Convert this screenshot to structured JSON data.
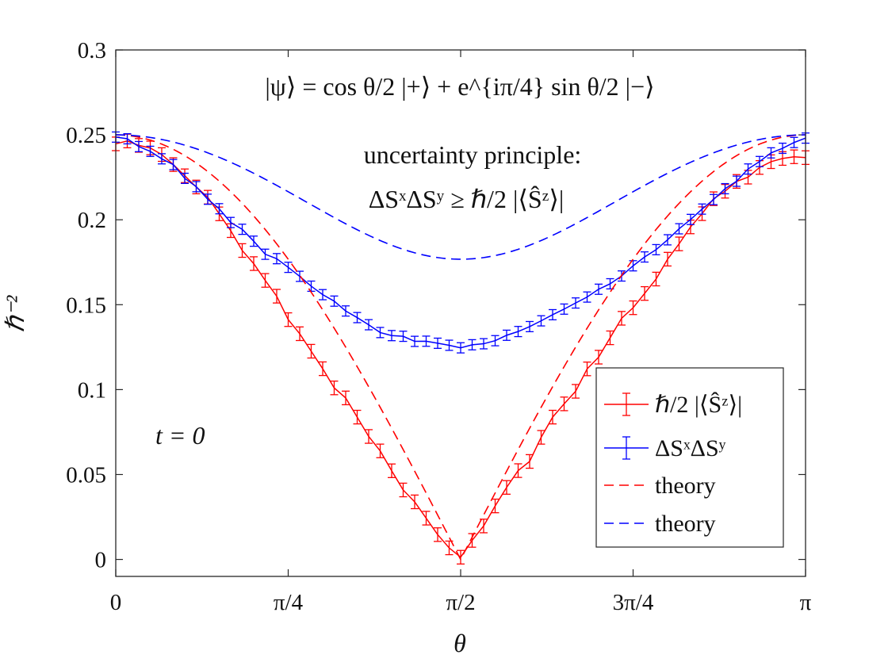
{
  "chart_data": {
    "type": "line",
    "title": "",
    "xlabel": "θ",
    "ylabel": "ℏ⁻²",
    "xlim": [
      0,
      3.14159
    ],
    "ylim": [
      -0.01,
      0.3
    ],
    "x_ticks": [
      {
        "value": 0,
        "label": "0"
      },
      {
        "value": 0.7854,
        "label": "π/4"
      },
      {
        "value": 1.5708,
        "label": "π/2"
      },
      {
        "value": 2.3562,
        "label": "3π/4"
      },
      {
        "value": 3.14159,
        "label": "π"
      }
    ],
    "y_ticks": [
      {
        "value": 0,
        "label": "0"
      },
      {
        "value": 0.05,
        "label": "0.05"
      },
      {
        "value": 0.1,
        "label": "0.1"
      },
      {
        "value": 0.15,
        "label": "0.15"
      },
      {
        "value": 0.2,
        "label": "0.2"
      },
      {
        "value": 0.25,
        "label": "0.25"
      },
      {
        "value": 0.3,
        "label": "0.3"
      }
    ],
    "grid": false,
    "legend_position": "bottom-right",
    "annotations": {
      "state_equation": "|ψ⟩ = cos θ/2 |+⟩ + e^{iπ/4} sin θ/2 |−⟩",
      "uncertainty_title": "uncertainty principle:",
      "uncertainty_relation": "ΔSˣΔSʸ ≥ ℏ/2 |⟨Ŝᶻ⟩|",
      "time_label": "t = 0"
    },
    "series": [
      {
        "name": "ℏ/2 |⟨Ŝᶻ⟩|",
        "color": "#ff0000",
        "style": "errorbar",
        "x": [
          0.0,
          0.0524,
          0.1047,
          0.1571,
          0.2094,
          0.2618,
          0.3142,
          0.3665,
          0.4189,
          0.4712,
          0.5236,
          0.576,
          0.6283,
          0.6807,
          0.733,
          0.7854,
          0.8378,
          0.8901,
          0.9425,
          0.9948,
          1.0472,
          1.0996,
          1.1519,
          1.2043,
          1.2566,
          1.309,
          1.3614,
          1.4137,
          1.4661,
          1.5184,
          1.5708,
          1.6232,
          1.6755,
          1.7279,
          1.7802,
          1.8326,
          1.885,
          1.9373,
          1.9897,
          2.042,
          2.0944,
          2.1468,
          2.1991,
          2.2515,
          2.3038,
          2.3562,
          2.4086,
          2.4609,
          2.5133,
          2.5656,
          2.618,
          2.6704,
          2.7227,
          2.7751,
          2.8274,
          2.8798,
          2.9322,
          2.9845,
          3.0369,
          3.0892,
          3.1416
        ],
        "y": [
          0.2447,
          0.2464,
          0.2438,
          0.2423,
          0.2384,
          0.2325,
          0.2259,
          0.2193,
          0.2133,
          0.2035,
          0.1936,
          0.1819,
          0.1742,
          0.1643,
          0.155,
          0.1412,
          0.1329,
          0.1226,
          0.1123,
          0.101,
          0.0951,
          0.0838,
          0.0724,
          0.0639,
          0.0522,
          0.0409,
          0.0339,
          0.0243,
          0.0146,
          0.0068,
          0.0013,
          0.0112,
          0.0197,
          0.0315,
          0.0424,
          0.0523,
          0.0577,
          0.0719,
          0.0838,
          0.0916,
          0.099,
          0.1122,
          0.1191,
          0.1305,
          0.142,
          0.1482,
          0.1566,
          0.1651,
          0.1768,
          0.1858,
          0.1958,
          0.2036,
          0.2124,
          0.2168,
          0.2226,
          0.2251,
          0.2308,
          0.2342,
          0.2361,
          0.2371,
          0.2366
        ],
        "err": 0.004
      },
      {
        "name": "ΔSˣΔSʸ",
        "color": "#0000ff",
        "style": "errorbar",
        "x": [
          0.0,
          0.0524,
          0.1047,
          0.1571,
          0.2094,
          0.2618,
          0.3142,
          0.3665,
          0.4189,
          0.4712,
          0.5236,
          0.576,
          0.6283,
          0.6807,
          0.733,
          0.7854,
          0.8378,
          0.8901,
          0.9425,
          0.9948,
          1.0472,
          1.0996,
          1.1519,
          1.2043,
          1.2566,
          1.309,
          1.3614,
          1.4137,
          1.4661,
          1.5184,
          1.5708,
          1.6232,
          1.6755,
          1.7279,
          1.7802,
          1.8326,
          1.885,
          1.9373,
          1.9897,
          2.042,
          2.0944,
          2.1468,
          2.1991,
          2.2515,
          2.3038,
          2.3562,
          2.4086,
          2.4609,
          2.5133,
          2.5656,
          2.618,
          2.6704,
          2.7227,
          2.7751,
          2.8274,
          2.8798,
          2.9322,
          2.9845,
          3.0369,
          3.0892,
          3.1416
        ],
        "y": [
          0.2487,
          0.2477,
          0.2431,
          0.2403,
          0.2359,
          0.2325,
          0.2244,
          0.2195,
          0.2121,
          0.2065,
          0.1984,
          0.1944,
          0.1874,
          0.1797,
          0.1771,
          0.172,
          0.1667,
          0.1609,
          0.1559,
          0.1521,
          0.1463,
          0.1424,
          0.1382,
          0.1336,
          0.1318,
          0.1314,
          0.1284,
          0.1285,
          0.1273,
          0.1261,
          0.1246,
          0.1264,
          0.127,
          0.1288,
          0.132,
          0.1342,
          0.1371,
          0.1405,
          0.1441,
          0.1474,
          0.151,
          0.1545,
          0.1591,
          0.1623,
          0.1669,
          0.1729,
          0.1781,
          0.1824,
          0.1882,
          0.1947,
          0.2002,
          0.2063,
          0.2119,
          0.2183,
          0.2227,
          0.2299,
          0.2343,
          0.2394,
          0.2421,
          0.2455,
          0.2481
        ],
        "err": 0.003
      },
      {
        "name": "theory",
        "color": "#ff0000",
        "style": "dashed",
        "function": "0.25*|cos(theta)|"
      },
      {
        "name": "theory",
        "color": "#0000ff",
        "style": "dashed",
        "function": "0.25*sqrt(1 - sin^2(theta)/2)"
      }
    ]
  }
}
